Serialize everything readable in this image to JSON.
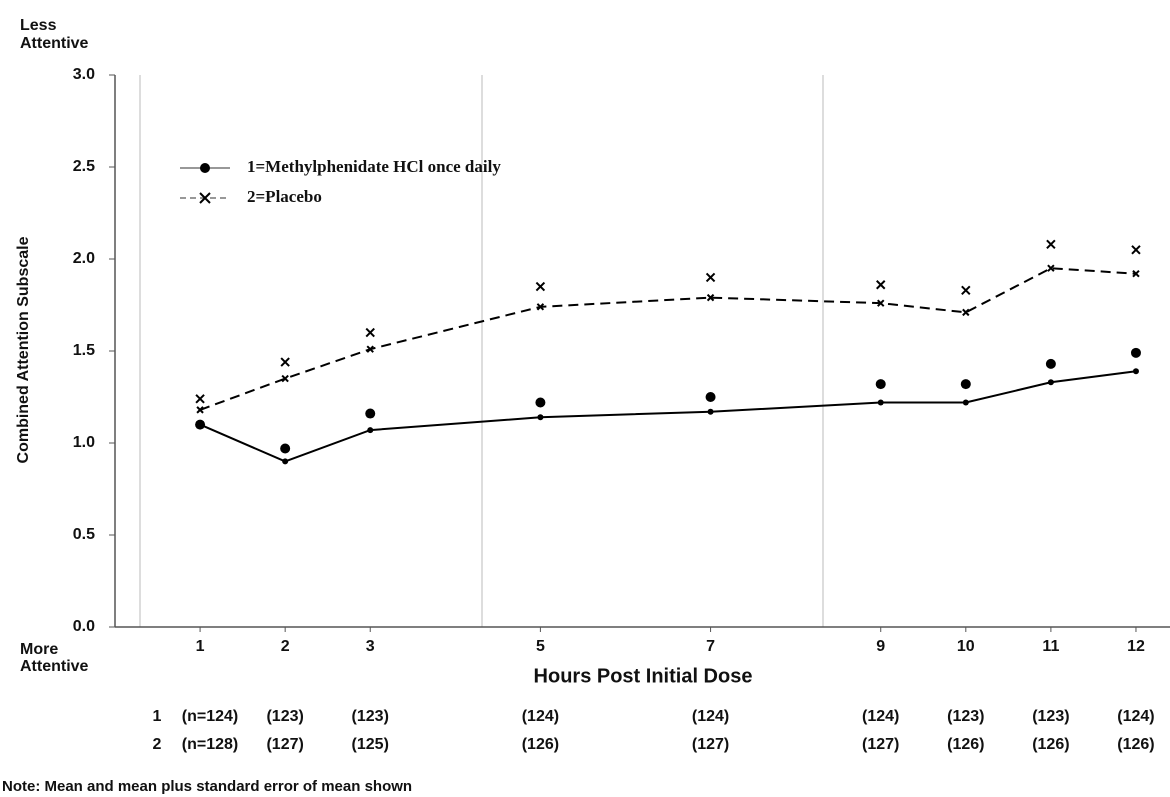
{
  "chart_data": {
    "type": "line",
    "top_label": [
      "Less",
      "Attentive"
    ],
    "bottom_label": [
      "More",
      "Attentive"
    ],
    "ylabel": "Combined Attention Subscale",
    "xlabel": "Hours Post Initial Dose",
    "x": [
      1,
      2,
      3,
      5,
      7,
      9,
      10,
      11,
      12
    ],
    "xlim": [
      0,
      12.4
    ],
    "xticks": [
      1,
      2,
      3,
      5,
      7,
      9,
      10,
      11,
      12
    ],
    "ylim": [
      0,
      3
    ],
    "yticks": [
      {
        "value": 0,
        "label": "0.0"
      },
      0.5,
      {
        "value": 1,
        "label": "1.0"
      },
      1.5,
      {
        "value": 2,
        "label": "2.0"
      },
      2.5,
      {
        "value": 3,
        "label": "3.0"
      }
    ],
    "series": [
      {
        "name": "1=Methylphenidate HCl once daily",
        "color": "#000000",
        "marker": "dot",
        "dashed": false,
        "values": [
          1.1,
          0.9,
          1.07,
          1.14,
          1.17,
          1.22,
          1.22,
          1.33,
          1.39
        ],
        "mean_plus_se": [
          1.1,
          0.97,
          1.16,
          1.22,
          1.25,
          1.32,
          1.32,
          1.43,
          1.49
        ]
      },
      {
        "name": "2=Placebo",
        "color": "#000000",
        "marker": "cross",
        "dashed": true,
        "values": [
          1.18,
          1.35,
          1.51,
          1.74,
          1.79,
          1.76,
          1.71,
          1.95,
          1.92
        ],
        "mean_plus_se": [
          1.24,
          1.44,
          1.6,
          1.85,
          1.9,
          1.86,
          1.83,
          2.08,
          2.05
        ]
      }
    ],
    "sample_sizes": [
      {
        "label": "1",
        "values": [
          "(n=124)",
          "(123)",
          "(123)",
          "(124)",
          "(124)",
          "(124)",
          "(123)",
          "(123)",
          "(124)"
        ]
      },
      {
        "label": "2",
        "values": [
          "(n=128)",
          "(127)",
          "(125)",
          "(126)",
          "(127)",
          "(127)",
          "(126)",
          "(126)",
          "(126)"
        ]
      }
    ],
    "note": "Note:  Mean and mean plus standard error of mean shown"
  }
}
